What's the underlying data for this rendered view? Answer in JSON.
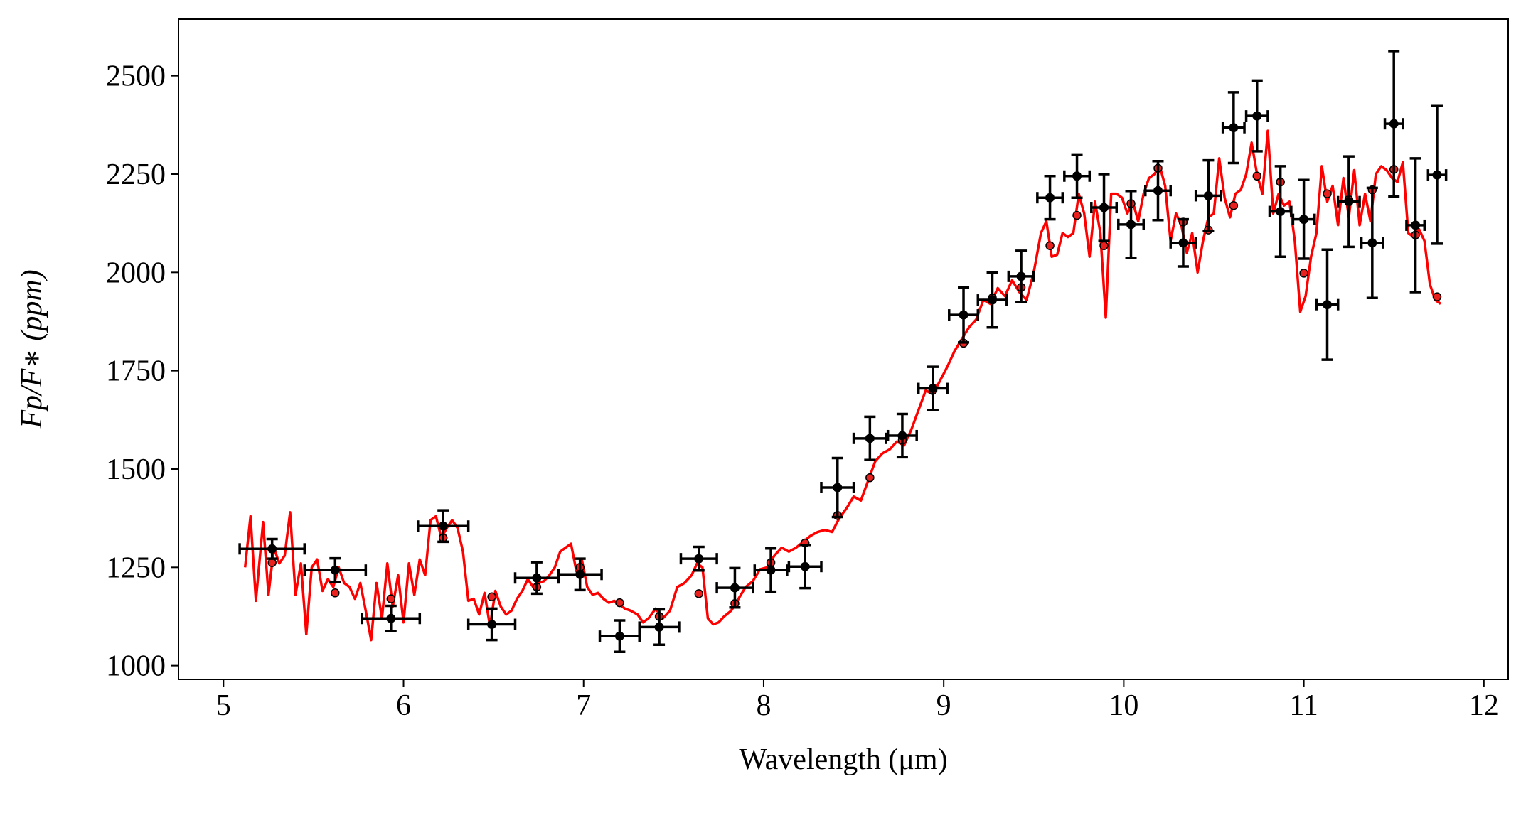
{
  "chart_data": {
    "type": "errorbar",
    "xlabel": "Wavelength (μm)",
    "ylabel": "Fp/F∗ (ppm)",
    "xlim": [
      4.75,
      12.135
    ],
    "ylim": [
      965,
      2644
    ],
    "xticks": [
      5,
      6,
      7,
      8,
      9,
      10,
      11,
      12
    ],
    "yticks": [
      1000,
      1250,
      1500,
      1750,
      2000,
      2250,
      2500
    ],
    "grid": false,
    "color": "#000000",
    "x": [
      5.27,
      5.62,
      5.93,
      6.22,
      6.49,
      6.74,
      6.98,
      7.2,
      7.42,
      7.64,
      7.84,
      8.04,
      8.23,
      8.41,
      8.59,
      8.77,
      8.94,
      9.11,
      9.27,
      9.43,
      9.59,
      9.74,
      9.89,
      10.04,
      10.19,
      10.33,
      10.47,
      10.61,
      10.74,
      10.87,
      11.0,
      11.13,
      11.25,
      11.38,
      11.5,
      11.62,
      11.74
    ],
    "values": [
      1297,
      1243,
      1120,
      1355,
      1105,
      1223,
      1232,
      1075,
      1098,
      1272,
      1198,
      1243,
      1252,
      1453,
      1578,
      1585,
      1705,
      1892,
      1930,
      1990,
      2190,
      2245,
      2165,
      2122,
      2208,
      2075,
      2195,
      2368,
      2398,
      2155,
      2135,
      1918,
      2180,
      2075,
      2378,
      2120,
      2248
    ],
    "xerr": [
      0.18,
      0.17,
      0.16,
      0.14,
      0.13,
      0.12,
      0.12,
      0.11,
      0.11,
      0.1,
      0.1,
      0.09,
      0.09,
      0.09,
      0.09,
      0.08,
      0.08,
      0.08,
      0.08,
      0.07,
      0.07,
      0.07,
      0.07,
      0.07,
      0.07,
      0.07,
      0.07,
      0.06,
      0.06,
      0.06,
      0.06,
      0.06,
      0.06,
      0.06,
      0.05,
      0.05,
      0.05
    ],
    "yerr": [
      25,
      30,
      32,
      40,
      40,
      40,
      40,
      40,
      45,
      30,
      50,
      55,
      55,
      75,
      55,
      55,
      55,
      70,
      70,
      65,
      55,
      55,
      85,
      85,
      75,
      60,
      90,
      90,
      90,
      115,
      100,
      140,
      115,
      140,
      185,
      170,
      175
    ],
    "model_points": {
      "color": "#e8201e",
      "x": [
        5.27,
        5.62,
        5.93,
        6.22,
        6.49,
        6.74,
        6.98,
        7.2,
        7.42,
        7.64,
        7.84,
        8.04,
        8.23,
        8.41,
        8.59,
        8.77,
        8.94,
        9.11,
        9.27,
        9.43,
        9.59,
        9.74,
        9.89,
        10.04,
        10.19,
        10.33,
        10.47,
        10.61,
        10.74,
        10.87,
        11.0,
        11.13,
        11.25,
        11.38,
        11.5,
        11.62,
        11.74
      ],
      "values": [
        1262,
        1185,
        1170,
        1325,
        1175,
        1200,
        1250,
        1160,
        1125,
        1183,
        1158,
        1262,
        1312,
        1382,
        1478,
        1573,
        1700,
        1820,
        1935,
        1962,
        2068,
        2145,
        2068,
        2175,
        2265,
        2128,
        2108,
        2170,
        2245,
        2230,
        1998,
        2200,
        2185,
        2210,
        2262,
        2095,
        1938
      ]
    },
    "model_line": {
      "color": "#ff0000",
      "x": [
        5.12,
        5.15,
        5.18,
        5.22,
        5.25,
        5.28,
        5.31,
        5.34,
        5.37,
        5.4,
        5.43,
        5.46,
        5.49,
        5.52,
        5.55,
        5.58,
        5.61,
        5.64,
        5.67,
        5.7,
        5.73,
        5.76,
        5.79,
        5.82,
        5.85,
        5.88,
        5.91,
        5.94,
        5.97,
        6.0,
        6.03,
        6.06,
        6.09,
        6.12,
        6.15,
        6.18,
        6.21,
        6.24,
        6.27,
        6.3,
        6.33,
        6.36,
        6.39,
        6.42,
        6.45,
        6.48,
        6.51,
        6.54,
        6.57,
        6.6,
        6.63,
        6.66,
        6.69,
        6.72,
        6.75,
        6.78,
        6.81,
        6.84,
        6.87,
        6.9,
        6.93,
        6.96,
        6.99,
        7.02,
        7.05,
        7.08,
        7.11,
        7.14,
        7.17,
        7.2,
        7.23,
        7.26,
        7.3,
        7.33,
        7.36,
        7.4,
        7.44,
        7.48,
        7.52,
        7.56,
        7.6,
        7.63,
        7.66,
        7.69,
        7.72,
        7.75,
        7.78,
        7.82,
        7.86,
        7.9,
        7.94,
        7.98,
        8.02,
        8.06,
        8.1,
        8.14,
        8.18,
        8.22,
        8.26,
        8.3,
        8.34,
        8.38,
        8.42,
        8.46,
        8.5,
        8.54,
        8.58,
        8.62,
        8.66,
        8.7,
        8.74,
        8.78,
        8.82,
        8.86,
        8.9,
        8.94,
        8.98,
        9.02,
        9.06,
        9.1,
        9.14,
        9.18,
        9.22,
        9.26,
        9.3,
        9.34,
        9.38,
        9.42,
        9.46,
        9.5,
        9.54,
        9.57,
        9.6,
        9.63,
        9.66,
        9.69,
        9.72,
        9.75,
        9.78,
        9.81,
        9.84,
        9.87,
        9.9,
        9.93,
        9.96,
        9.99,
        10.02,
        10.05,
        10.08,
        10.11,
        10.14,
        10.17,
        10.2,
        10.23,
        10.26,
        10.29,
        10.32,
        10.35,
        10.38,
        10.41,
        10.44,
        10.47,
        10.5,
        10.53,
        10.56,
        10.59,
        10.62,
        10.65,
        10.68,
        10.71,
        10.74,
        10.77,
        10.8,
        10.83,
        10.86,
        10.89,
        10.92,
        10.95,
        10.98,
        11.01,
        11.04,
        11.07,
        11.1,
        11.13,
        11.16,
        11.19,
        11.22,
        11.25,
        11.28,
        11.31,
        11.34,
        11.37,
        11.4,
        11.43,
        11.46,
        11.49,
        11.52,
        11.55,
        11.58,
        11.61,
        11.64,
        11.67,
        11.7,
        11.73,
        11.76
      ],
      "values": [
        1250,
        1380,
        1165,
        1365,
        1180,
        1300,
        1260,
        1280,
        1390,
        1180,
        1260,
        1080,
        1250,
        1270,
        1190,
        1220,
        1200,
        1250,
        1210,
        1200,
        1170,
        1210,
        1140,
        1065,
        1210,
        1120,
        1260,
        1150,
        1230,
        1110,
        1260,
        1180,
        1270,
        1230,
        1370,
        1380,
        1325,
        1350,
        1370,
        1350,
        1290,
        1165,
        1170,
        1130,
        1185,
        1100,
        1190,
        1150,
        1130,
        1140,
        1170,
        1190,
        1220,
        1200,
        1210,
        1215,
        1230,
        1250,
        1290,
        1300,
        1310,
        1240,
        1270,
        1200,
        1180,
        1185,
        1170,
        1160,
        1165,
        1155,
        1145,
        1140,
        1130,
        1110,
        1120,
        1145,
        1120,
        1140,
        1200,
        1210,
        1230,
        1260,
        1250,
        1120,
        1105,
        1110,
        1125,
        1140,
        1170,
        1200,
        1215,
        1245,
        1250,
        1280,
        1300,
        1290,
        1300,
        1315,
        1330,
        1340,
        1345,
        1340,
        1375,
        1400,
        1430,
        1420,
        1470,
        1520,
        1540,
        1550,
        1570,
        1560,
        1600,
        1650,
        1700,
        1690,
        1725,
        1760,
        1800,
        1830,
        1860,
        1880,
        1930,
        1920,
        1960,
        1940,
        1980,
        1950,
        1930,
        2000,
        2100,
        2130,
        2040,
        2045,
        2100,
        2090,
        2100,
        2200,
        2150,
        2040,
        2180,
        2100,
        1885,
        2200,
        2200,
        2190,
        2150,
        2180,
        2130,
        2200,
        2240,
        2250,
        2270,
        2220,
        2080,
        2150,
        2120,
        2050,
        2100,
        2000,
        2080,
        2140,
        2150,
        2290,
        2190,
        2140,
        2200,
        2210,
        2250,
        2330,
        2250,
        2200,
        2360,
        2150,
        2200,
        2170,
        2180,
        2080,
        1900,
        1940,
        2040,
        2100,
        2270,
        2180,
        2220,
        2120,
        2240,
        2140,
        2260,
        2120,
        2200,
        2130,
        2250,
        2270,
        2260,
        2240,
        2230,
        2280,
        2100,
        2090,
        2110,
        2080,
        1970,
        1930,
        1920
      ]
    }
  }
}
